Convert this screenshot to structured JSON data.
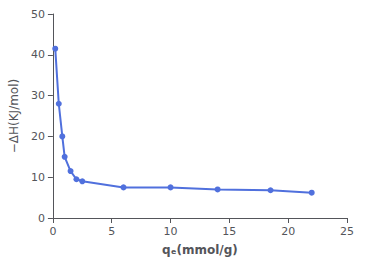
{
  "chart_data": {
    "type": "line",
    "xlabel": "qₑ(mmol/g)",
    "ylabel": "−ΔH(KJ/mol)",
    "x": [
      0.2,
      0.5,
      0.8,
      1.0,
      1.5,
      2.0,
      2.5,
      6.0,
      10.0,
      14.0,
      18.5,
      22.0
    ],
    "values": [
      41.5,
      28.0,
      20.0,
      15.0,
      11.5,
      9.5,
      9.0,
      7.5,
      7.5,
      7.0,
      6.8,
      6.2
    ],
    "xlim": [
      0,
      25
    ],
    "ylim": [
      0,
      50
    ],
    "xticks": [
      0,
      5,
      10,
      15,
      20,
      25
    ],
    "yticks": [
      0,
      10,
      20,
      30,
      40,
      50
    ],
    "marker": "circle",
    "grid": false
  }
}
